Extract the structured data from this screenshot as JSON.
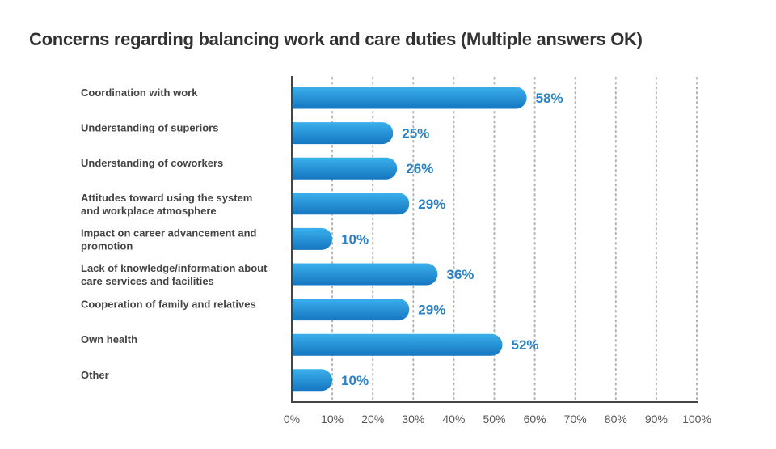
{
  "chart_data": {
    "type": "bar",
    "orientation": "horizontal",
    "title": "Concerns regarding balancing work and care duties (Multiple answers OK)",
    "categories": [
      [
        "Coordination with work"
      ],
      [
        "Understanding of superiors"
      ],
      [
        "Understanding of coworkers"
      ],
      [
        "Attitudes toward using the system",
        "and workplace atmosphere"
      ],
      [
        "Impact on career advancement and",
        "promotion"
      ],
      [
        "Lack of knowledge/information about",
        "care services and facilities"
      ],
      [
        "Cooperation of family and relatives"
      ],
      [
        "Own health"
      ],
      [
        "Other"
      ]
    ],
    "values": [
      58,
      25,
      26,
      29,
      10,
      36,
      29,
      52,
      10
    ],
    "value_labels": [
      "58%",
      "25%",
      "26%",
      "29%",
      "10%",
      "36%",
      "29%",
      "52%",
      "10%"
    ],
    "xlim": [
      0,
      100
    ],
    "x_ticks": [
      "0%",
      "10%",
      "20%",
      "30%",
      "40%",
      "50%",
      "60%",
      "70%",
      "80%",
      "90%",
      "100%"
    ],
    "grid": "vertical dotted",
    "colors": {
      "bar_top": "#3bb0ec",
      "bar_bottom": "#1576c0",
      "value_text": "#2a82c4",
      "axis": "#444444",
      "grid": "#b3b3b3"
    }
  }
}
